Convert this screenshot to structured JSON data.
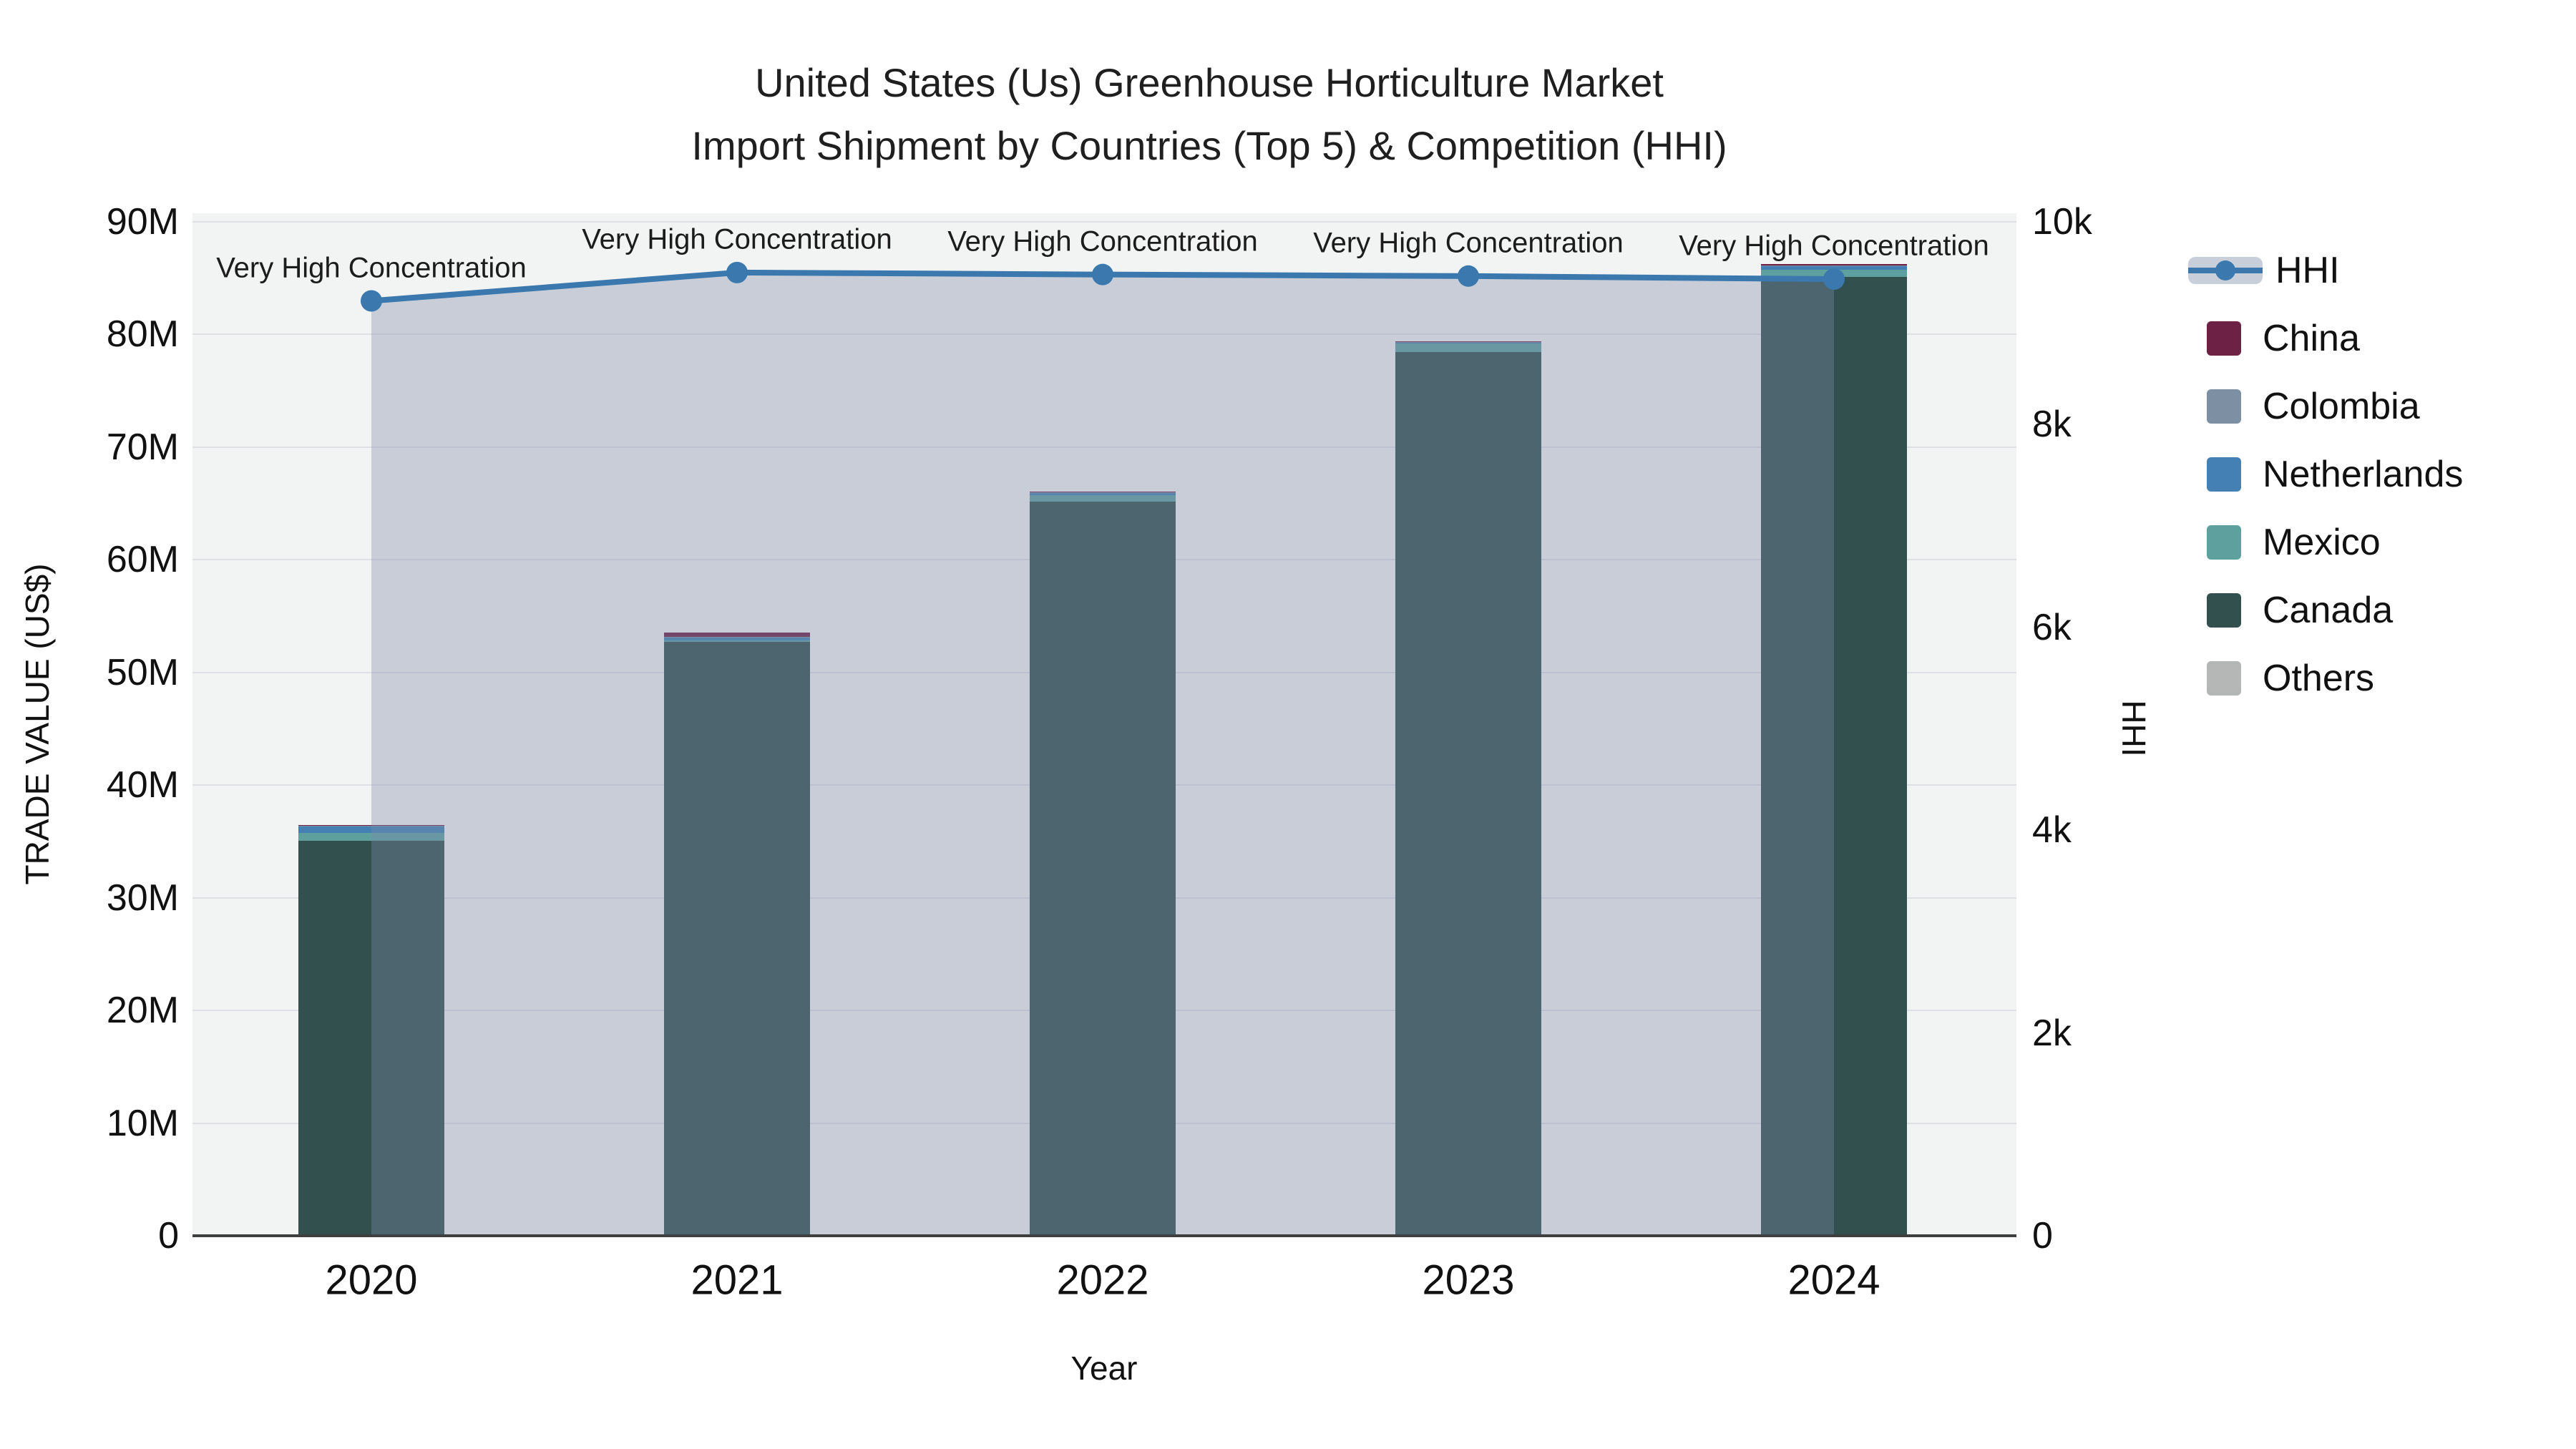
{
  "title": {
    "line1": "United States (Us) Greenhouse Horticulture Market",
    "line2": "Import Shipment by Countries (Top 5) & Competition (HHI)"
  },
  "axes": {
    "x": {
      "title": "Year",
      "categories": [
        "2020",
        "2021",
        "2022",
        "2023",
        "2024"
      ]
    },
    "y_left": {
      "title": "TRADE VALUE (US$)",
      "ticks": [
        "0",
        "10M",
        "20M",
        "30M",
        "40M",
        "50M",
        "60M",
        "70M",
        "80M",
        "90M"
      ],
      "max_millions": 90
    },
    "y_right": {
      "title": "HHI",
      "ticks": [
        "0",
        "2k",
        "4k",
        "6k",
        "8k",
        "10k"
      ],
      "max": 10000
    }
  },
  "legend": {
    "items": [
      {
        "label": "HHI",
        "type": "line",
        "color": "#3a78ad",
        "band": "#c9cfda"
      },
      {
        "label": "China",
        "type": "bar",
        "color": "#6d2145"
      },
      {
        "label": "Colombia",
        "type": "bar",
        "color": "#7d90a3"
      },
      {
        "label": "Netherlands",
        "type": "bar",
        "color": "#4480b4"
      },
      {
        "label": "Mexico",
        "type": "bar",
        "color": "#5ea09e"
      },
      {
        "label": "Canada",
        "type": "bar",
        "color": "#31504e"
      },
      {
        "label": "Others",
        "type": "bar",
        "color": "#b4b7b6"
      }
    ]
  },
  "chart_data": {
    "type": "bar+line",
    "title": "United States (Us) Greenhouse Horticulture Market Import Shipment by Countries (Top 5) & Competition (HHI)",
    "categories": [
      "2020",
      "2021",
      "2022",
      "2023",
      "2024"
    ],
    "bar_unit": "million US$",
    "bar_stack_order_bottom_to_top": [
      "Others",
      "Canada",
      "Mexico",
      "Netherlands",
      "Colombia",
      "China"
    ],
    "series": [
      {
        "name": "China",
        "color": "#6d2145",
        "values": [
          0.05,
          0.35,
          0.07,
          0.06,
          0.08
        ]
      },
      {
        "name": "Colombia",
        "color": "#7d90a3",
        "values": [
          0.05,
          0.05,
          0.05,
          0.05,
          0.1
        ]
      },
      {
        "name": "Netherlands",
        "color": "#4480b4",
        "values": [
          0.55,
          0.3,
          0.15,
          0.08,
          0.33
        ]
      },
      {
        "name": "Mexico",
        "color": "#5ea09e",
        "values": [
          0.75,
          0.08,
          0.62,
          0.74,
          0.58
        ]
      },
      {
        "name": "Canada",
        "color": "#31504e",
        "values": [
          35.0,
          52.7,
          65.1,
          78.4,
          85.1
        ]
      },
      {
        "name": "Others",
        "color": "#b4b7b6",
        "values": [
          0.04,
          0.04,
          0.04,
          0.04,
          0.04
        ]
      }
    ],
    "bar_totals_millions": [
      36.4,
      53.5,
      66.0,
      79.4,
      86.2
    ],
    "line_series": {
      "name": "HHI",
      "color": "#3a78ad",
      "fill": "rgba(125,138,170,0.36)",
      "values": [
        9220,
        9500,
        9480,
        9465,
        9435
      ]
    },
    "annotations": [
      "Very High Concentration",
      "Very High Concentration",
      "Very High Concentration",
      "Very High Concentration",
      "Very High Concentration"
    ],
    "ylim_left_millions": [
      0,
      90
    ],
    "ylim_right": [
      0,
      10000
    ],
    "grid": "horizontal",
    "legend_position": "right"
  },
  "colors": {
    "plot_bg": "#f2f3f3",
    "figure_bg": "#ffffff",
    "gridline": "rgba(125,125,140,0.16)",
    "axis_line": "#3f3f3f",
    "text": "#111111"
  }
}
